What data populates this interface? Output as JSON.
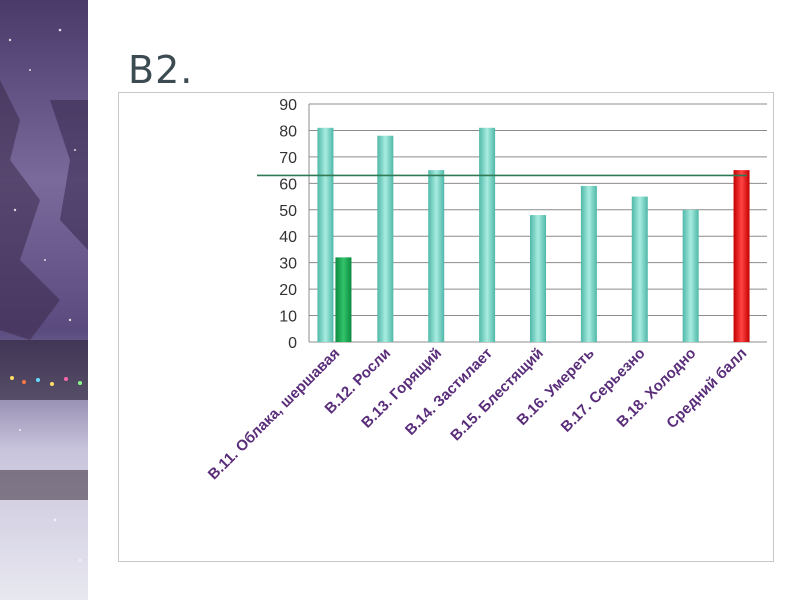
{
  "slide": {
    "title": "В2."
  },
  "colors": {
    "bar_main": "#7fd8c8",
    "bar_secondary": "#1aaa55",
    "bar_highlight": "#ee1111",
    "average_line": "#2f7a55",
    "label_text": "#5a2d7a"
  },
  "chart_data": {
    "type": "bar",
    "title": "",
    "xlabel": "",
    "ylabel": "",
    "ylim": [
      0,
      90
    ],
    "yticks": [
      0,
      10,
      20,
      30,
      40,
      50,
      60,
      70,
      80,
      90
    ],
    "grid": true,
    "legend": "none",
    "categories": [
      "В.11. Облака, шершавая",
      "В.12. Росли",
      "В.13. Горящий",
      "В.14. Застилает",
      "В.15. Блестящий",
      "В.16. Умереть",
      "В.17. Серьезно",
      "В.18. Холодно",
      "Средний балл"
    ],
    "series": [
      {
        "values": [
          81,
          78,
          65,
          81,
          48,
          59,
          55,
          50,
          null
        ],
        "color": "#7fd8c8"
      },
      {
        "values": [
          32,
          null,
          null,
          null,
          null,
          null,
          null,
          null,
          null
        ],
        "color": "#1aaa55"
      },
      {
        "values": [
          null,
          null,
          null,
          null,
          null,
          null,
          null,
          null,
          65
        ],
        "color": "#ee1111"
      }
    ],
    "reference_line": {
      "value": 63,
      "color": "#2f7a55"
    }
  }
}
